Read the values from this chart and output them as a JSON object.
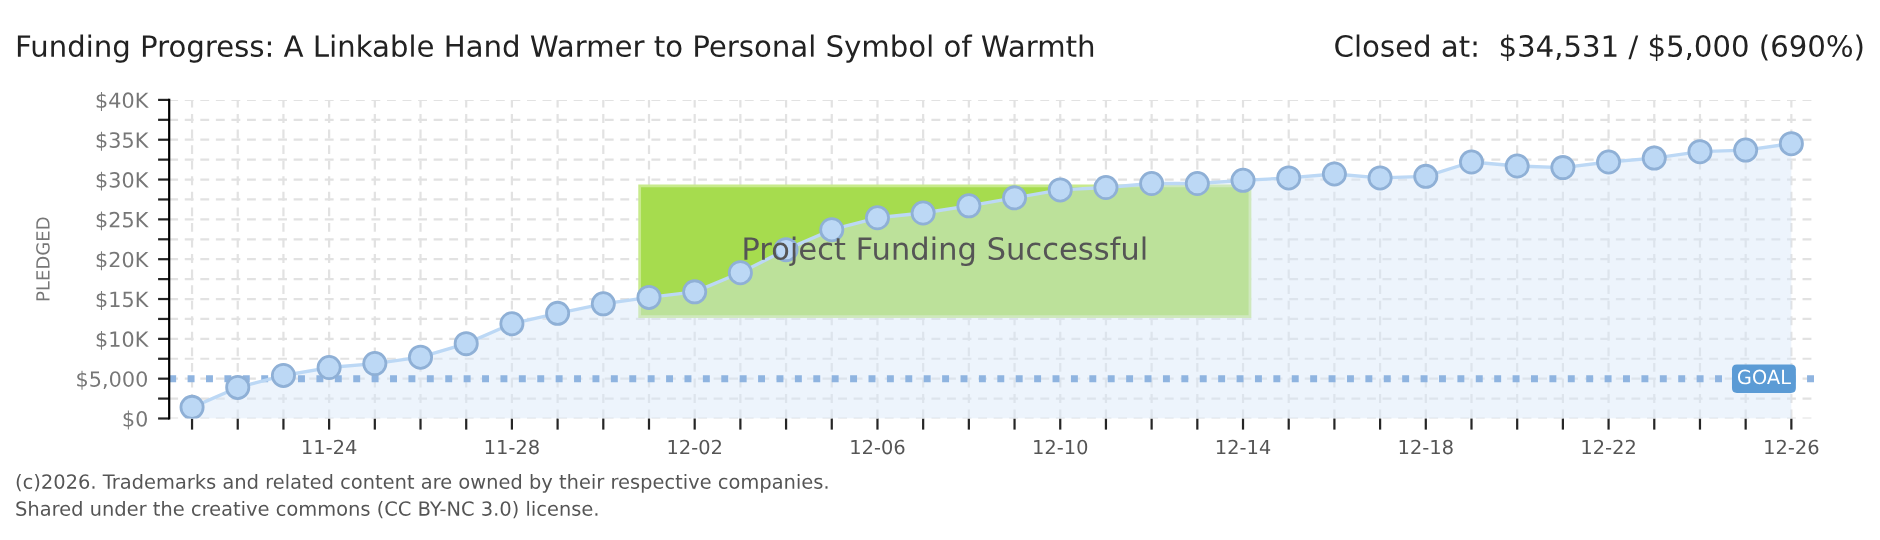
{
  "chart_data": {
    "type": "area",
    "title": "Funding Progress: A Linkable Hand Warmer to Personal Symbol of Warmth",
    "subtitle": "Closed at:  $34,531 / $5,000 (690%)",
    "ylabel": "PLEDGED",
    "categories": [
      null,
      null,
      null,
      "11-24",
      null,
      null,
      null,
      "11-28",
      null,
      null,
      null,
      "12-02",
      null,
      null,
      null,
      "12-06",
      null,
      null,
      null,
      "12-10",
      null,
      null,
      null,
      "12-14",
      null,
      null,
      null,
      "12-18",
      null,
      null,
      null,
      "12-22",
      null,
      null,
      null,
      "12-26"
    ],
    "series": [
      {
        "color": "#bcd8f5",
        "values": [
          1400,
          3900,
          5400,
          6400,
          6900,
          7700,
          9400,
          11900,
          13200,
          14400,
          15200,
          15900,
          18300,
          21200,
          23700,
          25200,
          25800,
          26700,
          27700,
          28700,
          29000,
          29500,
          29500,
          29900,
          30200,
          30700,
          30200,
          30400,
          32200,
          31700,
          31500,
          32200,
          32700,
          33500,
          33700,
          34500
        ]
      }
    ],
    "ylim": [
      0,
      40000
    ],
    "yticks": [
      {
        "value": 0,
        "label": "$0"
      },
      {
        "value": 2500,
        "label": null
      },
      {
        "value": 5000,
        "label": "$5,000"
      },
      {
        "value": 7500,
        "label": null
      },
      {
        "value": 10000,
        "label": "$10K"
      },
      {
        "value": 12500,
        "label": null
      },
      {
        "value": 15000,
        "label": "$15K"
      },
      {
        "value": 17500,
        "label": null
      },
      {
        "value": 20000,
        "label": "$20K"
      },
      {
        "value": 22500,
        "label": null
      },
      {
        "value": 25000,
        "label": "$25K"
      },
      {
        "value": 27500,
        "label": null
      },
      {
        "value": 30000,
        "label": "$30K"
      },
      {
        "value": 32500,
        "label": null
      },
      {
        "value": 35000,
        "label": "$35K"
      },
      {
        "value": 37500,
        "label": null
      },
      {
        "value": 40000,
        "label": "$40K"
      }
    ],
    "ref_lines": [
      {
        "axis": "y",
        "value": 5000,
        "label": "GOAL",
        "color": "#8fb4e0",
        "line_style": "dotted"
      }
    ],
    "annotations": [
      "Project Funding Successful",
      "(c)2026. Trademarks and related content are owned by their respective companies.",
      "Shared under the creative commons (CC BY-NC 3.0) license."
    ],
    "grid": true,
    "marker": "circle",
    "line_style": "solid"
  }
}
